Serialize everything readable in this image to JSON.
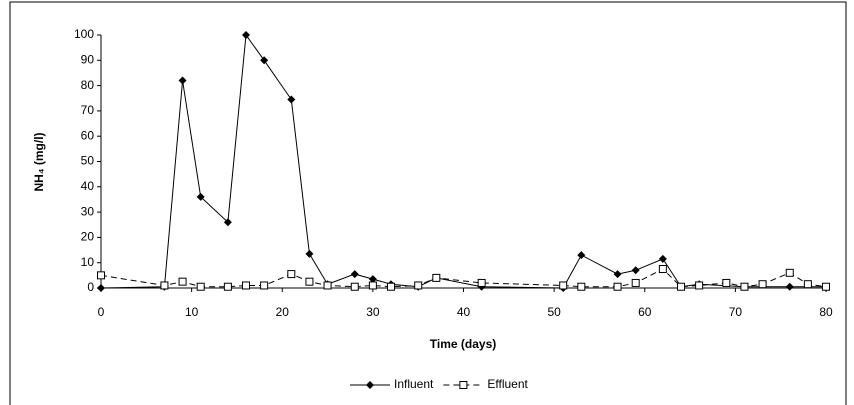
{
  "chart_data": {
    "type": "line",
    "x_label": "Time (days)",
    "y_label": "NH₄ (mg/l)",
    "xlim": [
      0,
      80
    ],
    "xticks": [
      0,
      10,
      20,
      30,
      40,
      50,
      60,
      70,
      80
    ],
    "ylim": [
      0,
      100
    ],
    "yticks": [
      0,
      10,
      20,
      30,
      40,
      50,
      60,
      70,
      80,
      90,
      100
    ],
    "legend": "bottom",
    "series": [
      {
        "name": "Influent",
        "color": "#000000",
        "marker": "diamond",
        "dash": false,
        "x": [
          0,
          7,
          9,
          11,
          14,
          16,
          18,
          21,
          23,
          25,
          28,
          30,
          32,
          35,
          37,
          42,
          51,
          53,
          57,
          59,
          62,
          64,
          66,
          71,
          76,
          80
        ],
        "values": [
          0,
          0.5,
          82,
          36,
          26,
          100,
          90,
          74.5,
          13.5,
          1.5,
          5.5,
          3.5,
          1.5,
          0.5,
          4,
          0.5,
          0,
          13,
          5.5,
          7,
          11.5,
          0.5,
          1.5,
          0.5,
          0.5,
          0.5
        ]
      },
      {
        "name": "Effluent",
        "color": "#000000",
        "marker": "square",
        "dash": true,
        "x": [
          0,
          7,
          9,
          11,
          14,
          16,
          18,
          21,
          23,
          25,
          28,
          30,
          32,
          35,
          37,
          42,
          51,
          53,
          57,
          59,
          62,
          64,
          66,
          69,
          71,
          73,
          76,
          78,
          80
        ],
        "values": [
          5,
          1,
          2.5,
          0.5,
          0.5,
          1,
          1,
          5.5,
          2.5,
          1,
          0.5,
          1,
          0.5,
          1,
          4,
          2,
          1,
          0.5,
          0.5,
          2,
          7.5,
          0.5,
          1,
          2,
          0.5,
          1.5,
          6,
          1.5,
          0.5
        ]
      }
    ]
  }
}
